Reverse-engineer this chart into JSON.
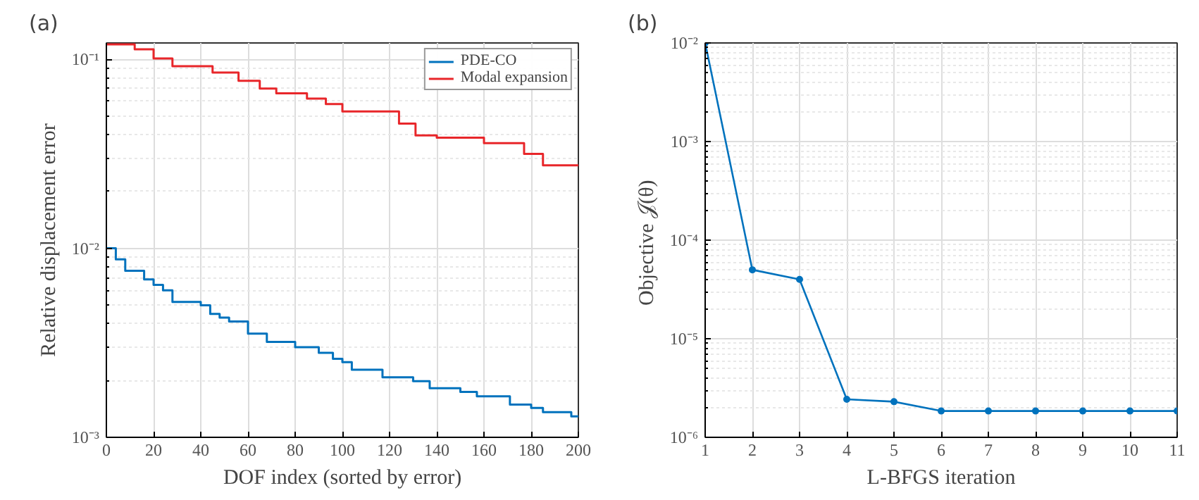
{
  "chart_data": [
    {
      "type": "step",
      "title": "(a)",
      "xlabel": "DOF index (sorted by error)",
      "ylabel": "Relative displacement error",
      "log": "y",
      "grid": true,
      "legend": "top right",
      "xlim": [
        0,
        200
      ],
      "xticks": [
        0,
        20,
        40,
        60,
        80,
        100,
        120,
        140,
        160,
        180,
        200
      ],
      "ylim": [
        0.001,
        0.122
      ],
      "yticks": [
        {
          "value": 0.001,
          "label": "10⁻³"
        },
        {
          "value": 0.01,
          "label": "10⁻²"
        },
        {
          "value": 0.1,
          "label": "10⁻¹"
        }
      ],
      "series": [
        {
          "name": "PDE-CO",
          "color": "#0072bd",
          "x": [
            0,
            4,
            8,
            16,
            20,
            24,
            28,
            40,
            44,
            48,
            52,
            60,
            68,
            80,
            90,
            96,
            100,
            104,
            117,
            130,
            137,
            150,
            157,
            171,
            180,
            185,
            197,
            200
          ],
          "values": [
            0.01,
            0.00875,
            0.0076,
            0.00685,
            0.0064,
            0.006,
            0.0052,
            0.005,
            0.0045,
            0.0043,
            0.0041,
            0.00354,
            0.0032,
            0.003,
            0.0028,
            0.0026,
            0.0025,
            0.00228,
            0.00208,
            0.00198,
            0.00182,
            0.00174,
            0.00165,
            0.00149,
            0.00143,
            0.00136,
            0.00129,
            0.00129
          ]
        },
        {
          "name": "Modal expansion",
          "color": "#e8262a",
          "x": [
            0,
            12,
            20,
            28,
            45,
            56,
            65,
            72,
            85,
            93,
            100,
            124,
            131,
            140,
            160,
            177,
            185,
            200
          ],
          "values": [
            0.12,
            0.113,
            0.101,
            0.092,
            0.085,
            0.077,
            0.07,
            0.066,
            0.062,
            0.058,
            0.053,
            0.0457,
            0.0396,
            0.0385,
            0.036,
            0.0316,
            0.0275,
            0.0275
          ]
        }
      ]
    },
    {
      "type": "line",
      "title": "(b)",
      "xlabel": "L-BFGS iteration",
      "ylabel": "Objective  𝒥(θ)",
      "log": "y",
      "grid": true,
      "marker": "circle",
      "xlim": [
        1,
        11
      ],
      "xticks": [
        1,
        2,
        3,
        4,
        5,
        6,
        7,
        8,
        9,
        10,
        11
      ],
      "ylim": [
        1e-06,
        0.01
      ],
      "yticks": [
        {
          "value": 1e-06,
          "label": "10⁻⁶"
        },
        {
          "value": 1e-05,
          "label": "10⁻⁵"
        },
        {
          "value": 0.0001,
          "label": "10⁻⁴"
        },
        {
          "value": 0.001,
          "label": "10⁻³"
        },
        {
          "value": 0.01,
          "label": "10⁻²"
        }
      ],
      "series": [
        {
          "color": "#0072bd",
          "x": [
            1,
            2,
            3,
            4,
            5,
            6,
            7,
            8,
            9,
            10,
            11
          ],
          "values": [
            0.01,
            5e-05,
            4e-05,
            2.43e-06,
            2.3e-06,
            1.85e-06,
            1.85e-06,
            1.85e-06,
            1.85e-06,
            1.85e-06,
            1.85e-06
          ]
        }
      ]
    }
  ]
}
